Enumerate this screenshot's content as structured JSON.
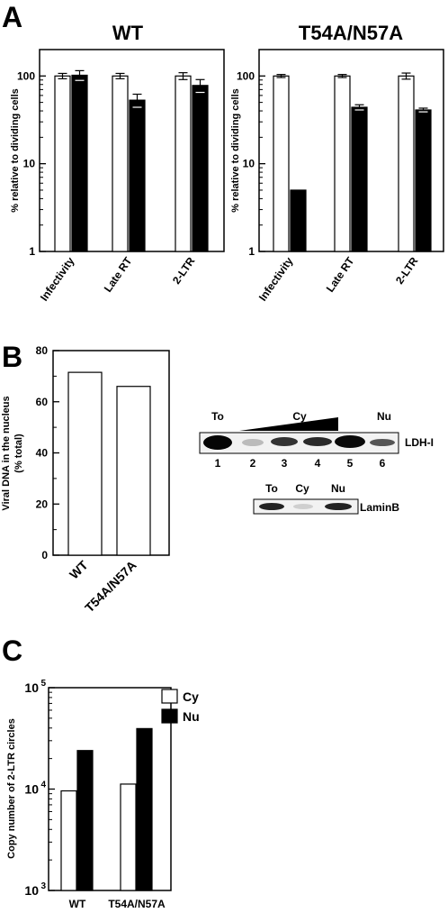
{
  "panels": {
    "A": "A",
    "B": "B",
    "C": "C"
  },
  "chart_data": [
    {
      "id": "A_WT",
      "type": "bar",
      "title": "WT",
      "ylabel": "% relative to dividing cells",
      "yscale": "log",
      "ylim": [
        1,
        200
      ],
      "yticks": [
        "1",
        "10",
        "100"
      ],
      "categories": [
        "Infectivity",
        "Late RT",
        "2-LTR"
      ],
      "series": [
        {
          "color": "#ffffff",
          "values": [
            100,
            100,
            100
          ],
          "errors": [
            7,
            7,
            9
          ]
        },
        {
          "color": "#000000",
          "values": [
            102,
            53,
            78
          ],
          "errors": [
            13,
            9,
            13
          ]
        }
      ]
    },
    {
      "id": "A_T54A",
      "type": "bar",
      "title": "T54A/N57A",
      "ylabel": "% relative to dividing cells",
      "yscale": "log",
      "ylim": [
        1,
        200
      ],
      "yticks": [
        "1",
        "10",
        "100"
      ],
      "categories": [
        "Infectivity",
        "Late RT",
        "2-LTR"
      ],
      "series": [
        {
          "color": "#ffffff",
          "values": [
            100,
            100,
            100
          ],
          "errors": [
            4,
            4,
            8
          ]
        },
        {
          "color": "#000000",
          "values": [
            5,
            44,
            41
          ],
          "errors": [
            0,
            3,
            2
          ]
        }
      ]
    },
    {
      "id": "B",
      "type": "bar",
      "title": "",
      "ylabel": "Viral DNA in the nucleus (% total)",
      "ylabel_lines": [
        "Viral DNA in the nucleus",
        "(% total)"
      ],
      "ylim": [
        0,
        80
      ],
      "yticks": [
        "0",
        "20",
        "40",
        "60",
        "80"
      ],
      "categories": [
        "WT",
        "T54A/N57A"
      ],
      "values": [
        71.5,
        66
      ]
    },
    {
      "id": "C",
      "type": "bar",
      "title": "",
      "ylabel": "Copy number of 2-LTR circles",
      "yscale": "log",
      "ylim": [
        1000,
        100000
      ],
      "yticks": [
        {
          "base": "10",
          "exp": "3"
        },
        {
          "base": "10",
          "exp": "4"
        },
        {
          "base": "10",
          "exp": "5"
        }
      ],
      "categories": [
        "WT",
        "T54A/N57A"
      ],
      "legend": "top-right",
      "series": [
        {
          "name": "Cy",
          "color": "#ffffff",
          "values": [
            9600,
            11200
          ]
        },
        {
          "name": "Nu",
          "color": "#000000",
          "values": [
            24000,
            39500
          ]
        }
      ]
    }
  ],
  "blot": {
    "ldh": {
      "lanes": [
        "To",
        "Cy",
        "Nu"
      ],
      "numbers": [
        "1",
        "2",
        "3",
        "4",
        "5",
        "6"
      ],
      "label": "LDH-I"
    },
    "lamin": {
      "lanes": [
        "To",
        "Cy",
        "Nu"
      ],
      "label": "LaminB"
    }
  }
}
